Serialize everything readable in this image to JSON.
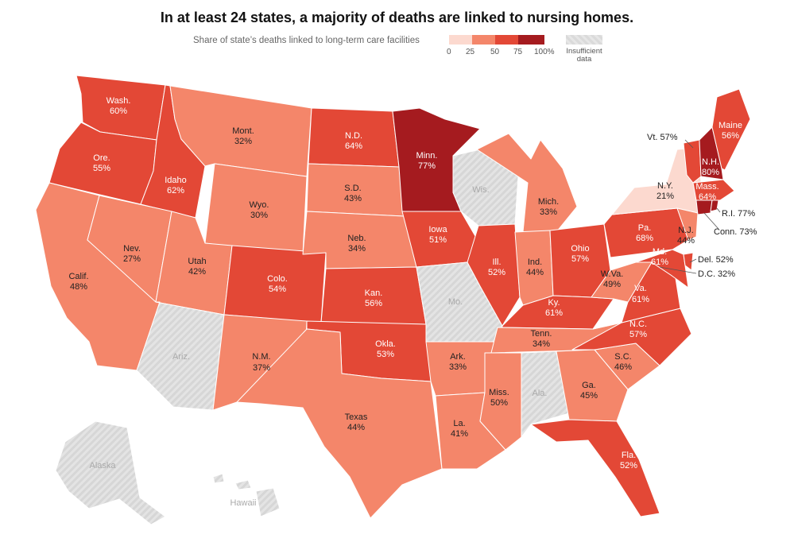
{
  "title": "In at least 24 states, a majority of deaths are linked to nursing homes.",
  "legend": {
    "caption": "Share of state’s deaths linked to long-term care facilities",
    "ticks": [
      "0",
      "25",
      "50",
      "75",
      "100%"
    ],
    "insufficient_label_1": "Insufficient",
    "insufficient_label_2": "data",
    "colors": {
      "bin_0_25": "#fcd9cf",
      "bin_25_50": "#f4866a",
      "bin_50_75": "#e34836",
      "bin_75_100": "#a51b1f",
      "insufficient": "#dddddd"
    }
  },
  "states": {
    "wa": {
      "name": "Wash.",
      "value": "60%"
    },
    "or": {
      "name": "Ore.",
      "value": "55%"
    },
    "ca": {
      "name": "Calif.",
      "value": "48%"
    },
    "id": {
      "name": "Idaho",
      "value": "62%"
    },
    "nv": {
      "name": "Nev.",
      "value": "27%"
    },
    "mt": {
      "name": "Mont.",
      "value": "32%"
    },
    "wy": {
      "name": "Wyo.",
      "value": "30%"
    },
    "ut": {
      "name": "Utah",
      "value": "42%"
    },
    "az": {
      "name": "Ariz.",
      "value": ""
    },
    "co": {
      "name": "Colo.",
      "value": "54%"
    },
    "nm": {
      "name": "N.M.",
      "value": "37%"
    },
    "nd": {
      "name": "N.D.",
      "value": "64%"
    },
    "sd": {
      "name": "S.D.",
      "value": "43%"
    },
    "ne": {
      "name": "Neb.",
      "value": "34%"
    },
    "ks": {
      "name": "Kan.",
      "value": "56%"
    },
    "ok": {
      "name": "Okla.",
      "value": "53%"
    },
    "tx": {
      "name": "Texas",
      "value": "44%"
    },
    "mn": {
      "name": "Minn.",
      "value": "77%"
    },
    "ia": {
      "name": "Iowa",
      "value": "51%"
    },
    "mo": {
      "name": "Mo.",
      "value": ""
    },
    "ar": {
      "name": "Ark.",
      "value": "33%"
    },
    "la": {
      "name": "La.",
      "value": "41%"
    },
    "wi": {
      "name": "Wis.",
      "value": ""
    },
    "il": {
      "name": "Ill.",
      "value": "52%"
    },
    "mi": {
      "name": "Mich.",
      "value": "33%"
    },
    "in": {
      "name": "Ind.",
      "value": "44%"
    },
    "oh": {
      "name": "Ohio",
      "value": "57%"
    },
    "ky": {
      "name": "Ky.",
      "value": "61%"
    },
    "tn": {
      "name": "Tenn.",
      "value": "34%"
    },
    "ms": {
      "name": "Miss.",
      "value": "50%"
    },
    "al": {
      "name": "Ala.",
      "value": ""
    },
    "ga": {
      "name": "Ga.",
      "value": "45%"
    },
    "fl": {
      "name": "Fla.",
      "value": "52%"
    },
    "sc": {
      "name": "S.C.",
      "value": "46%"
    },
    "nc": {
      "name": "N.C.",
      "value": "57%"
    },
    "va": {
      "name": "Va.",
      "value": "61%"
    },
    "wv": {
      "name": "W.Va.",
      "value": "49%"
    },
    "pa": {
      "name": "Pa.",
      "value": "68%"
    },
    "ny": {
      "name": "N.Y.",
      "value": "21%"
    },
    "md": {
      "name": "Md.",
      "value": "61%"
    },
    "nj": {
      "name": "N.J.",
      "value": "44%"
    },
    "me": {
      "name": "Maine",
      "value": "56%"
    },
    "nh": {
      "name": "N.H.",
      "value": "80%"
    },
    "ma": {
      "name": "Mass.",
      "value": "64%"
    },
    "ak": {
      "name": "Alaska",
      "value": ""
    },
    "hi": {
      "name": "Hawaii",
      "value": ""
    }
  },
  "external_labels": {
    "vt": "Vt. 57%",
    "ri": "R.I. 77%",
    "ct": "Conn. 73%",
    "de": "Del. 52%",
    "dc": "D.C. 32%"
  }
}
